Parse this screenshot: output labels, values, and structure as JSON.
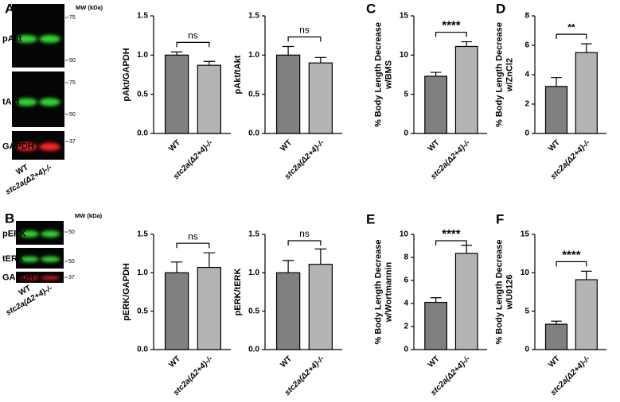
{
  "blots": [
    {
      "panel": "A",
      "mw_label": "MW (kDa)",
      "lanes": [
        "WT",
        "stc2a(Δ2+4)-/-"
      ],
      "rows": [
        {
          "label": "pAkt",
          "markers": [
            75,
            50
          ]
        },
        {
          "label": "tAkt",
          "markers": [
            75,
            50
          ]
        },
        {
          "label": "GAPDH",
          "markers": [
            37
          ]
        }
      ]
    },
    {
      "panel": "B",
      "mw_label": "MW (kDa)",
      "lanes": [
        "WT",
        "stc2a(Δ2+4)-/-"
      ],
      "rows": [
        {
          "label": "pERK",
          "markers": [
            50
          ]
        },
        {
          "label": "tERK",
          "markers": [
            50
          ]
        },
        {
          "label": "GAPDH",
          "markers": [
            37
          ]
        }
      ]
    }
  ],
  "chart_data": [
    {
      "type": "bar",
      "ylabel": [
        "pAkt/GAPDH"
      ],
      "categories": [
        "WT",
        "stc2a(Δ2+4)-/-"
      ],
      "values": [
        1.0,
        0.87
      ],
      "errors": [
        0.04,
        0.05
      ],
      "colors": [
        "#808080",
        "#b4b4b4"
      ],
      "annotation": "ns",
      "ylim": [
        0,
        1.5
      ],
      "yticks": [
        {
          "value": 0,
          "label": "0.0"
        },
        0.5,
        {
          "value": 1,
          "label": "1.0"
        },
        1.5
      ]
    },
    {
      "type": "bar",
      "ylabel": [
        "pAkt/tAkt"
      ],
      "categories": [
        "WT",
        "stc2a(Δ2+4)-/-"
      ],
      "values": [
        1.0,
        0.9
      ],
      "errors": [
        0.11,
        0.07
      ],
      "colors": [
        "#808080",
        "#b4b4b4"
      ],
      "annotation": "ns",
      "ylim": [
        0,
        1.5
      ],
      "yticks": [
        {
          "value": 0,
          "label": "0.0"
        },
        0.5,
        {
          "value": 1,
          "label": "1.0"
        },
        1.5
      ]
    },
    {
      "type": "bar",
      "panel": "C",
      "ylabel": [
        "% Body Length Decrease",
        "w/BMS"
      ],
      "categories": [
        "WT",
        "stc2a(Δ2+4)-/-"
      ],
      "values": [
        7.3,
        11.1
      ],
      "errors": [
        0.5,
        0.6
      ],
      "colors": [
        "#808080",
        "#b4b4b4"
      ],
      "annotation": "****",
      "ylim": [
        0,
        15
      ],
      "yticks": [
        0,
        5,
        10,
        15
      ]
    },
    {
      "type": "bar",
      "panel": "D",
      "ylabel": [
        "% Body Length Decrease",
        "w/ZnCl2"
      ],
      "categories": [
        "WT",
        "stc2a(Δ2+4)-/-"
      ],
      "values": [
        3.2,
        5.5
      ],
      "errors": [
        0.6,
        0.6
      ],
      "colors": [
        "#808080",
        "#b4b4b4"
      ],
      "annotation": "**",
      "ylim": [
        0,
        8
      ],
      "yticks": [
        0,
        2,
        4,
        6,
        8
      ]
    },
    {
      "type": "bar",
      "ylabel": [
        "pERK/GAPDH"
      ],
      "categories": [
        "WT",
        "stc2a(Δ2+4)-/-"
      ],
      "values": [
        1.0,
        1.07
      ],
      "errors": [
        0.14,
        0.19
      ],
      "colors": [
        "#808080",
        "#b4b4b4"
      ],
      "annotation": "ns",
      "ylim": [
        0,
        1.5
      ],
      "yticks": [
        {
          "value": 0,
          "label": "0.0"
        },
        0.5,
        {
          "value": 1,
          "label": "1.0"
        },
        1.5
      ]
    },
    {
      "type": "bar",
      "ylabel": [
        "pERK/tERK"
      ],
      "categories": [
        "WT",
        "stc2a(Δ2+4)-/-"
      ],
      "values": [
        1.0,
        1.11
      ],
      "errors": [
        0.16,
        0.2
      ],
      "colors": [
        "#808080",
        "#b4b4b4"
      ],
      "annotation": "ns",
      "ylim": [
        0,
        1.5
      ],
      "yticks": [
        {
          "value": 0,
          "label": "0.0"
        },
        0.5,
        {
          "value": 1,
          "label": "1.0"
        },
        1.5
      ]
    },
    {
      "type": "bar",
      "panel": "E",
      "ylabel": [
        "% Body Length Decrease",
        "w/Wortmannin"
      ],
      "categories": [
        "WT",
        "stc2a(Δ2+4)-/-"
      ],
      "values": [
        4.1,
        8.35
      ],
      "errors": [
        0.4,
        0.7
      ],
      "colors": [
        "#808080",
        "#b4b4b4"
      ],
      "annotation": "****",
      "ylim": [
        0,
        10
      ],
      "yticks": [
        0,
        2,
        4,
        6,
        8,
        10
      ]
    },
    {
      "type": "bar",
      "panel": "F",
      "ylabel": [
        "% Body Length Decrease",
        "w/U0126"
      ],
      "categories": [
        "WT",
        "stc2a(Δ2+4)-/-"
      ],
      "values": [
        3.3,
        9.1
      ],
      "errors": [
        0.4,
        1.1
      ],
      "colors": [
        "#808080",
        "#b4b4b4"
      ],
      "annotation": "****",
      "ylim": [
        0,
        15
      ],
      "yticks": [
        0,
        5,
        10,
        15
      ]
    }
  ]
}
